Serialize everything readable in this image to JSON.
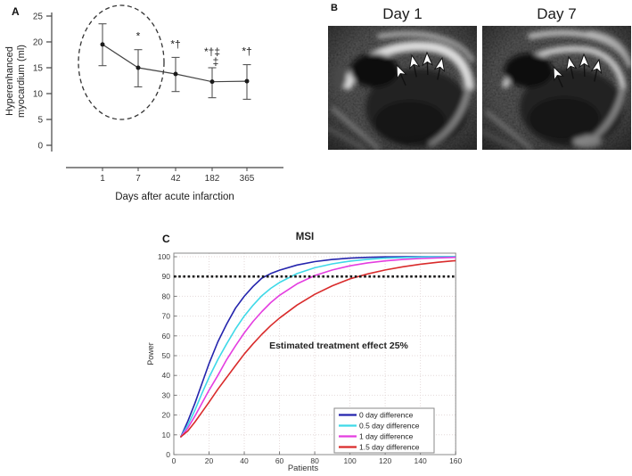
{
  "figure": {
    "panels": {
      "a": {
        "label": "A"
      },
      "b": {
        "label": "B",
        "images": [
          {
            "title": "Day 1"
          },
          {
            "title": "Day 7"
          }
        ]
      },
      "c": {
        "label": "C"
      }
    }
  },
  "chart_data": [
    {
      "type": "line",
      "panel": "A",
      "title": "",
      "ylabel_lines": [
        "Hyperenhanced",
        "myocardium (ml)"
      ],
      "xlabel": "Days after acute infarction",
      "categories": [
        "1",
        "7",
        "42",
        "182",
        "365"
      ],
      "values": [
        19.5,
        15.0,
        13.8,
        12.3,
        12.4
      ],
      "upper": [
        23.5,
        18.5,
        17.0,
        15.0,
        15.6
      ],
      "lower": [
        15.4,
        11.3,
        10.4,
        9.2,
        8.9
      ],
      "yticks": [
        0,
        5,
        10,
        15,
        20,
        25
      ],
      "ylim": [
        0,
        25
      ],
      "annotations": [
        {
          "index": 1,
          "lines": [
            "*"
          ]
        },
        {
          "index": 2,
          "lines": [
            "*†"
          ]
        },
        {
          "index": 3,
          "lines": [
            "*†‡",
            "‡"
          ]
        },
        {
          "index": 4,
          "lines": [
            "*†"
          ]
        }
      ],
      "highlight_ellipse": {
        "around": [
          "1",
          "7"
        ],
        "style": "dashed"
      }
    },
    {
      "type": "line",
      "panel": "C",
      "title": "MSI",
      "xlabel": "Patients",
      "ylabel": "Power",
      "xlim": [
        0,
        160
      ],
      "ylim": [
        0,
        102
      ],
      "xticks": [
        0,
        20,
        40,
        60,
        80,
        100,
        120,
        140,
        160
      ],
      "yticks": [
        0,
        10,
        20,
        30,
        40,
        50,
        60,
        70,
        80,
        90,
        100
      ],
      "grid": true,
      "legend_position": "bottom-right",
      "threshold": {
        "value": 90,
        "style": "dotted",
        "color": "#1a1a1a"
      },
      "annotation": "Estimated treatment effect 25%",
      "x": [
        4,
        8,
        12,
        16,
        20,
        25,
        30,
        35,
        40,
        45,
        50,
        55,
        60,
        70,
        80,
        90,
        100,
        110,
        120,
        130,
        140,
        150,
        160
      ],
      "series": [
        {
          "name": "0 day difference",
          "color": "#2424ad",
          "values": [
            9,
            17,
            26,
            36,
            46,
            57,
            66,
            74,
            80,
            85,
            89.2,
            91.5,
            93.2,
            95.8,
            97.5,
            98.6,
            99.3,
            99.7,
            99.9,
            100,
            100,
            100,
            100
          ]
        },
        {
          "name": "0.5 day difference",
          "color": "#3fd9e8",
          "values": [
            9,
            15,
            22.5,
            31,
            39,
            48,
            56,
            63.5,
            70,
            75.5,
            80.3,
            84,
            87,
            91.5,
            94.4,
            96.4,
            97.8,
            98.7,
            99.3,
            99.6,
            99.8,
            99.9,
            100
          ]
        },
        {
          "name": "1 day difference",
          "color": "#e43ee0",
          "values": [
            9,
            13.5,
            19.5,
            26,
            32.5,
            40,
            48,
            55,
            61.5,
            67.3,
            72.3,
            76.8,
            80.5,
            86.3,
            90.5,
            93.3,
            95.4,
            96.9,
            97.9,
            98.6,
            99.1,
            99.4,
            99.7
          ]
        },
        {
          "name": "1.5 day difference",
          "color": "#d92b2b",
          "values": [
            9,
            12,
            16.5,
            21.5,
            26.5,
            33,
            39,
            45,
            50.8,
            56,
            60.8,
            65.2,
            69,
            75.6,
            81,
            85.3,
            88.8,
            91.3,
            93.3,
            94.9,
            96.2,
            97.2,
            98
          ]
        }
      ]
    }
  ]
}
